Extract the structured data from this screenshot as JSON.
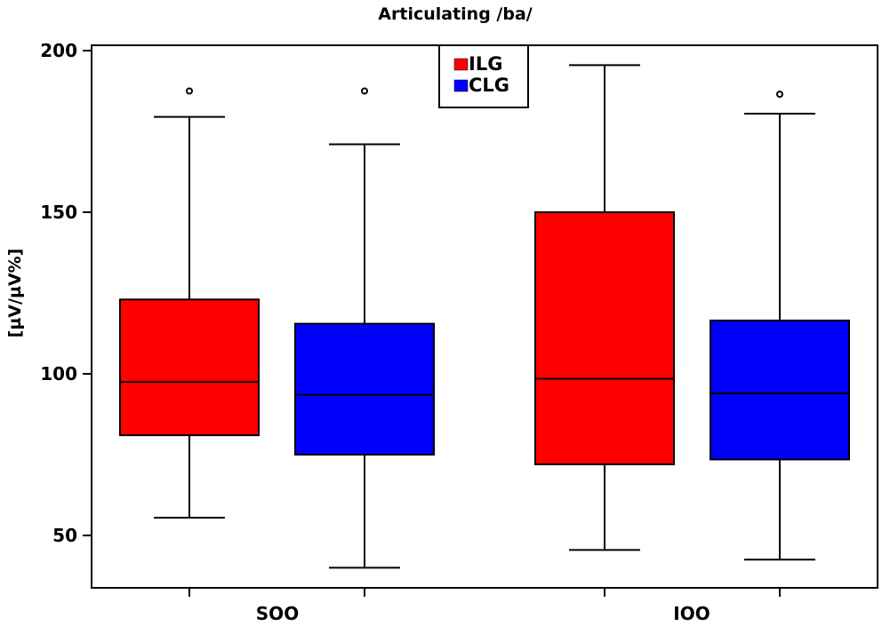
{
  "chart_data": {
    "type": "box",
    "title": "Articulating /ba/",
    "xlabel": "",
    "ylabel": "[µV/µV%]",
    "ylim": [
      35,
      203
    ],
    "yticks": [
      50,
      100,
      150,
      200
    ],
    "ytick_labels": [
      "50",
      "100",
      "150",
      "200"
    ],
    "categories": [
      "SOO",
      "IOO"
    ],
    "legend_position": "top-center",
    "series": [
      {
        "name": "ILG",
        "color": "#ff0000",
        "boxes": [
          {
            "category": "SOO",
            "whisker_low": 55.5,
            "q1": 81,
            "median": 97.5,
            "q3": 123,
            "whisker_high": 179.5,
            "outliers": [
              187.5
            ]
          },
          {
            "category": "IOO",
            "whisker_low": 45.5,
            "q1": 72,
            "median": 98.5,
            "q3": 150,
            "whisker_high": 195.5,
            "outliers": []
          }
        ]
      },
      {
        "name": "CLG",
        "color": "#0000ff",
        "boxes": [
          {
            "category": "SOO",
            "whisker_low": 40,
            "q1": 75,
            "median": 93.5,
            "q3": 115.5,
            "whisker_high": 171,
            "outliers": [
              187.5
            ]
          },
          {
            "category": "IOO",
            "whisker_low": 42.5,
            "q1": 73.5,
            "median": 94,
            "q3": 116.5,
            "whisker_high": 180.5,
            "outliers": [
              186.5
            ]
          }
        ]
      }
    ]
  }
}
